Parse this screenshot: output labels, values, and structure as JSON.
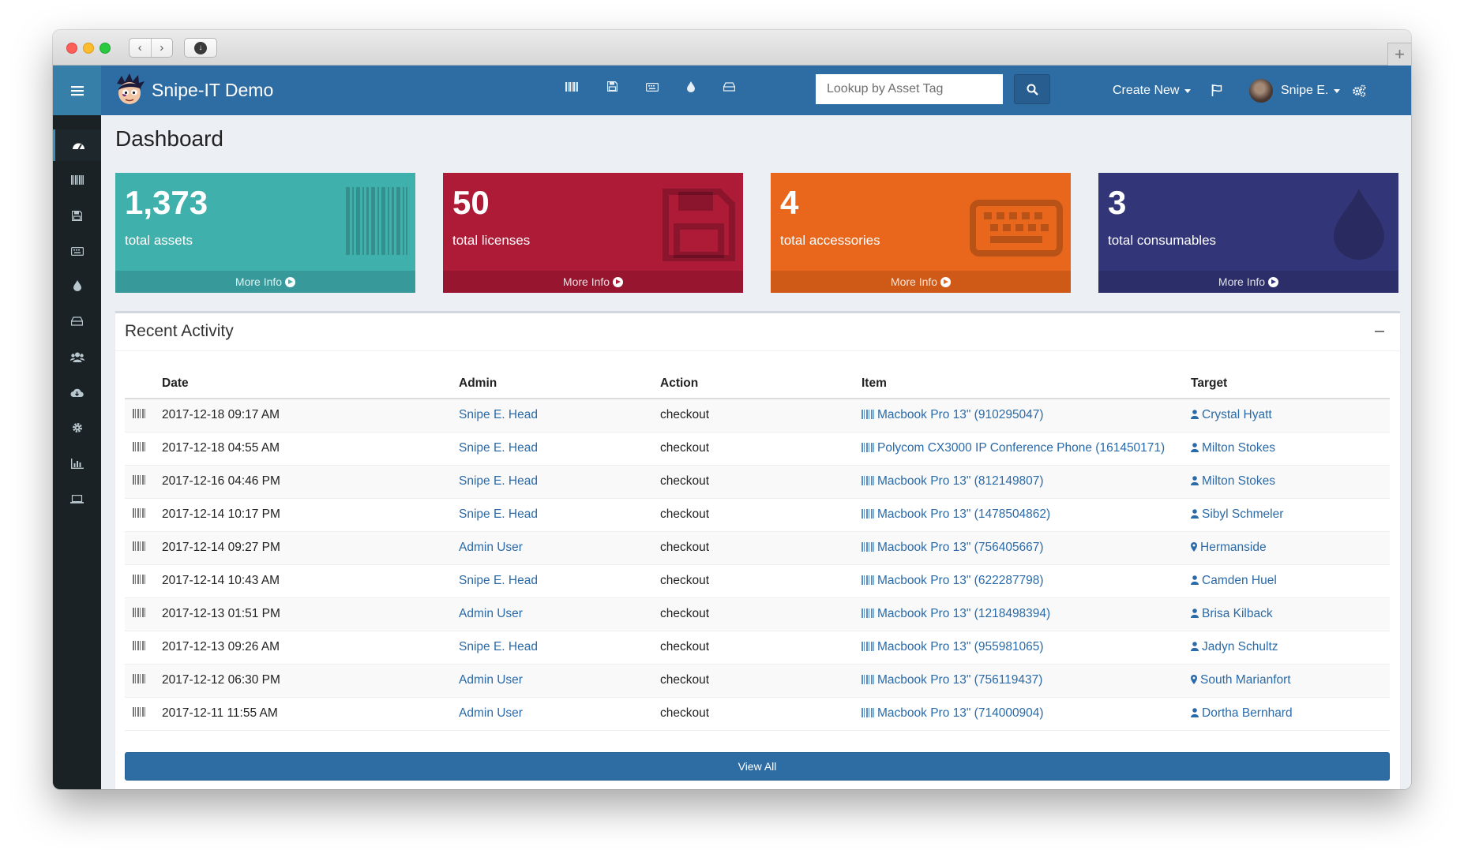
{
  "header": {
    "app_title": "Snipe-IT Demo",
    "nav_icons": [
      "barcode-icon",
      "floppy-icon",
      "keyboard-icon",
      "tint-icon",
      "hdd-icon"
    ],
    "search_placeholder": "Lookup by Asset Tag",
    "create_new": "Create New",
    "user_name": "Snipe E."
  },
  "sidebar": {
    "items": [
      "dashboard-icon",
      "barcode-icon",
      "floppy-icon",
      "keyboard-icon",
      "tint-icon",
      "hdd-icon",
      "users-icon",
      "cloud-download-icon",
      "settings-icon",
      "reports-icon",
      "laptop-icon"
    ]
  },
  "page": {
    "title": "Dashboard"
  },
  "stats": [
    {
      "count": "1,373",
      "label": "total assets",
      "more": "More Info",
      "color": "#3fb0ac"
    },
    {
      "count": "50",
      "label": "total licenses",
      "more": "More Info",
      "color": "#ad1b37"
    },
    {
      "count": "4",
      "label": "total accessories",
      "more": "More Info",
      "color": "#e8671c"
    },
    {
      "count": "3",
      "label": "total consumables",
      "more": "More Info",
      "color": "#333579"
    }
  ],
  "activity": {
    "title": "Recent Activity",
    "columns": [
      "Date",
      "Admin",
      "Action",
      "Item",
      "Target"
    ],
    "rows": [
      {
        "date": "2017-12-18 09:17 AM",
        "admin": "Snipe E. Head",
        "action": "checkout",
        "item": "Macbook Pro 13\" (910295047)",
        "target": "Crystal Hyatt",
        "target_type": "user"
      },
      {
        "date": "2017-12-18 04:55 AM",
        "admin": "Snipe E. Head",
        "action": "checkout",
        "item": "Polycom CX3000 IP Conference Phone (161450171)",
        "target": "Milton Stokes",
        "target_type": "user"
      },
      {
        "date": "2017-12-16 04:46 PM",
        "admin": "Snipe E. Head",
        "action": "checkout",
        "item": "Macbook Pro 13\" (812149807)",
        "target": "Milton Stokes",
        "target_type": "user"
      },
      {
        "date": "2017-12-14 10:17 PM",
        "admin": "Snipe E. Head",
        "action": "checkout",
        "item": "Macbook Pro 13\" (1478504862)",
        "target": "Sibyl Schmeler",
        "target_type": "user"
      },
      {
        "date": "2017-12-14 09:27 PM",
        "admin": "Admin User",
        "action": "checkout",
        "item": "Macbook Pro 13\" (756405667)",
        "target": "Hermanside",
        "target_type": "location"
      },
      {
        "date": "2017-12-14 10:43 AM",
        "admin": "Snipe E. Head",
        "action": "checkout",
        "item": "Macbook Pro 13\" (622287798)",
        "target": "Camden Huel",
        "target_type": "user"
      },
      {
        "date": "2017-12-13 01:51 PM",
        "admin": "Admin User",
        "action": "checkout",
        "item": "Macbook Pro 13\" (1218498394)",
        "target": "Brisa Kilback",
        "target_type": "user"
      },
      {
        "date": "2017-12-13 09:26 AM",
        "admin": "Snipe E. Head",
        "action": "checkout",
        "item": "Macbook Pro 13\" (955981065)",
        "target": "Jadyn Schultz",
        "target_type": "user"
      },
      {
        "date": "2017-12-12 06:30 PM",
        "admin": "Admin User",
        "action": "checkout",
        "item": "Macbook Pro 13\" (756119437)",
        "target": "South Marianfort",
        "target_type": "location"
      },
      {
        "date": "2017-12-11 11:55 AM",
        "admin": "Admin User",
        "action": "checkout",
        "item": "Macbook Pro 13\" (714000904)",
        "target": "Dortha Bernhard",
        "target_type": "user"
      }
    ],
    "view_all": "View All"
  }
}
